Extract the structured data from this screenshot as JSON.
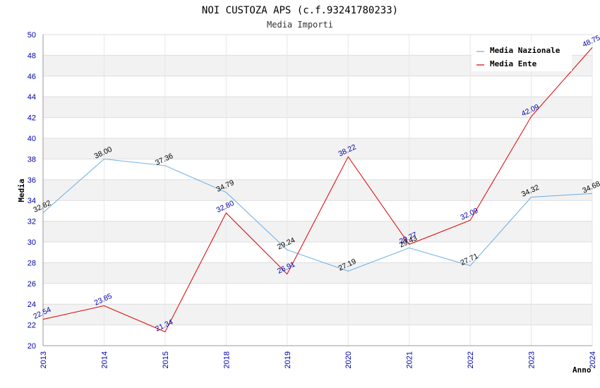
{
  "chart_data": {
    "type": "line",
    "title": "NOI CUSTOZA APS (c.f.93241780233)",
    "subtitle": "Media Importi",
    "xlabel": "Anno",
    "ylabel": "Media",
    "ylim": [
      20,
      50
    ],
    "ytick_step": 2,
    "grid": true,
    "legend_position": "top-right",
    "categories": [
      "2013",
      "2014",
      "2015",
      "2018",
      "2019",
      "2020",
      "2021",
      "2022",
      "2023",
      "2024"
    ],
    "series": [
      {
        "name": "Media Nazionale",
        "color": "#6aaee6",
        "values": [
          32.82,
          38.0,
          37.36,
          34.79,
          29.24,
          27.19,
          29.43,
          27.71,
          34.32,
          34.68
        ],
        "labels": [
          "32.82",
          "38.00",
          "37.36",
          "34.79",
          "29.24",
          "27.19",
          "29.43",
          "27.71",
          "34.32",
          "34.68"
        ]
      },
      {
        "name": "Media Ente",
        "color": "#dd0000",
        "values": [
          22.54,
          23.85,
          21.34,
          32.8,
          26.91,
          38.22,
          29.77,
          32.09,
          42.09,
          48.75
        ],
        "labels": [
          "22.54",
          "23.85",
          "21.34",
          "32.80",
          "26.91",
          "38.22",
          "29.77",
          "32.09",
          "42.09",
          "48.75"
        ]
      }
    ]
  }
}
